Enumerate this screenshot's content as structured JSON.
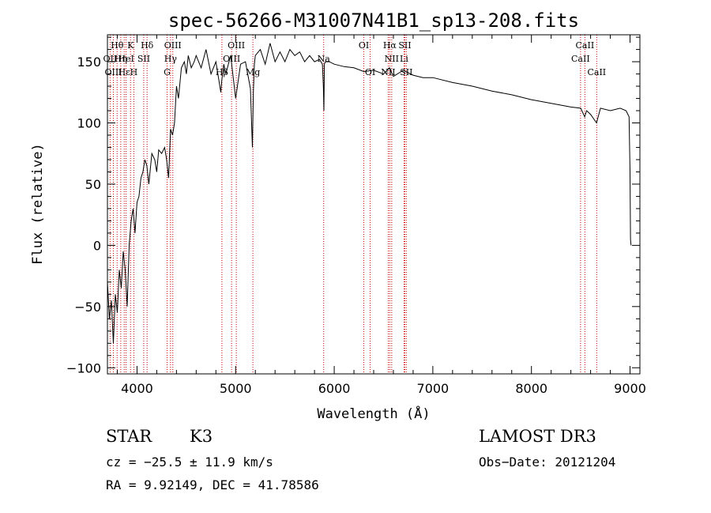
{
  "chart_data": {
    "type": "line",
    "title": "spec-56266-M31007N41B1_sp13-208.fits",
    "xlabel": "Wavelength (Å)",
    "ylabel": "Flux (relative)",
    "xlim": [
      3700,
      9100
    ],
    "ylim": [
      -105,
      172
    ],
    "x_ticks": [
      4000,
      5000,
      6000,
      7000,
      8000,
      9000
    ],
    "x_tick_labels": [
      "4000",
      "5000",
      "6000",
      "7000",
      "8000",
      "9000"
    ],
    "y_ticks": [
      -100,
      -50,
      0,
      50,
      100,
      150
    ],
    "y_tick_labels": [
      "−100",
      "−50",
      "0",
      "50",
      "100",
      "150"
    ],
    "series": [
      {
        "name": "flux",
        "x": [
          3700,
          3720,
          3740,
          3760,
          3780,
          3800,
          3820,
          3840,
          3860,
          3880,
          3900,
          3920,
          3940,
          3960,
          3980,
          4000,
          4020,
          4040,
          4060,
          4080,
          4100,
          4120,
          4150,
          4180,
          4200,
          4220,
          4250,
          4280,
          4300,
          4320,
          4340,
          4360,
          4380,
          4400,
          4420,
          4450,
          4480,
          4500,
          4520,
          4550,
          4580,
          4600,
          4650,
          4700,
          4750,
          4800,
          4850,
          4860,
          4880,
          4900,
          4950,
          5000,
          5050,
          5100,
          5150,
          5170,
          5180,
          5190,
          5200,
          5250,
          5300,
          5350,
          5400,
          5450,
          5500,
          5550,
          5600,
          5650,
          5700,
          5750,
          5800,
          5850,
          5880,
          5890,
          5895,
          5900,
          5910,
          5950,
          6000,
          6100,
          6200,
          6300,
          6400,
          6500,
          6560,
          6600,
          6700,
          6800,
          6900,
          7000,
          7200,
          7400,
          7600,
          7800,
          8000,
          8200,
          8400,
          8500,
          8540,
          8560,
          8600,
          8660,
          8700,
          8800,
          8900,
          8960,
          8990,
          9000,
          9005,
          9010
        ],
        "values": [
          -30,
          -60,
          -45,
          -80,
          -40,
          -55,
          -20,
          -35,
          -5,
          -20,
          -50,
          0,
          20,
          30,
          10,
          35,
          40,
          55,
          60,
          70,
          65,
          50,
          75,
          70,
          60,
          78,
          75,
          80,
          70,
          55,
          95,
          90,
          100,
          130,
          120,
          145,
          150,
          140,
          155,
          145,
          150,
          155,
          145,
          160,
          140,
          150,
          125,
          135,
          148,
          140,
          155,
          120,
          148,
          150,
          128,
          80,
          125,
          148,
          155,
          160,
          148,
          165,
          150,
          158,
          150,
          160,
          155,
          158,
          150,
          155,
          150,
          152,
          148,
          130,
          110,
          148,
          150,
          150,
          148,
          146,
          145,
          142,
          143,
          140,
          145,
          138,
          143,
          139,
          137,
          137,
          133,
          130,
          126,
          123,
          119,
          116,
          113,
          112,
          105,
          110,
          107,
          100,
          112,
          110,
          112,
          110,
          105,
          60,
          5,
          0
        ]
      }
    ],
    "line_labels": [
      {
        "label": "Hθ",
        "x": 3798,
        "row": 0
      },
      {
        "label": "OII",
        "x": 3727,
        "row": 1
      },
      {
        "label": "OIII",
        "x": 3760,
        "row": 2
      },
      {
        "label": "Hη",
        "x": 3835,
        "row": 1
      },
      {
        "label": "K",
        "x": 3934,
        "row": 0
      },
      {
        "label": "HeI",
        "x": 3889,
        "row": 1
      },
      {
        "label": "Hε",
        "x": 3870,
        "row": 2
      },
      {
        "label": "H",
        "x": 3968,
        "row": 2
      },
      {
        "label": "Hδ",
        "x": 4102,
        "row": 0
      },
      {
        "label": "SII",
        "x": 4068,
        "row": 1
      },
      {
        "label": "OIII",
        "x": 4363,
        "row": 0
      },
      {
        "label": "Hγ",
        "x": 4340,
        "row": 1
      },
      {
        "label": "G",
        "x": 4305,
        "row": 2
      },
      {
        "label": "OIII",
        "x": 5007,
        "row": 0
      },
      {
        "label": "OIII",
        "x": 4959,
        "row": 1
      },
      {
        "label": "Hβ",
        "x": 4861,
        "row": 2
      },
      {
        "label": "Mg",
        "x": 5175,
        "row": 2
      },
      {
        "label": "Na",
        "x": 5893,
        "row": 1
      },
      {
        "label": "OI",
        "x": 6300,
        "row": 0
      },
      {
        "label": "OI",
        "x": 6364,
        "row": 2
      },
      {
        "label": "Hα",
        "x": 6563,
        "row": 0
      },
      {
        "label": "SII",
        "x": 6716,
        "row": 0
      },
      {
        "label": "NII",
        "x": 6583,
        "row": 1
      },
      {
        "label": "Li",
        "x": 6708,
        "row": 1
      },
      {
        "label": "NII",
        "x": 6548,
        "row": 2
      },
      {
        "label": "SII",
        "x": 6731,
        "row": 2
      },
      {
        "label": "CaII",
        "x": 8542,
        "row": 0
      },
      {
        "label": "CaII",
        "x": 8498,
        "row": 1
      },
      {
        "label": "CaII",
        "x": 8662,
        "row": 2
      }
    ],
    "line_marker_color": "#cc0000"
  },
  "info": {
    "object_class": "STAR",
    "subclass": "K3",
    "survey": "LAMOST DR3",
    "redshift_text": "cz = −25.5 ± 11.9 km/s",
    "obs_date_text": "Obs−Date: 20121204",
    "coords_text": "RA =   9.92149, DEC =  41.78586"
  }
}
